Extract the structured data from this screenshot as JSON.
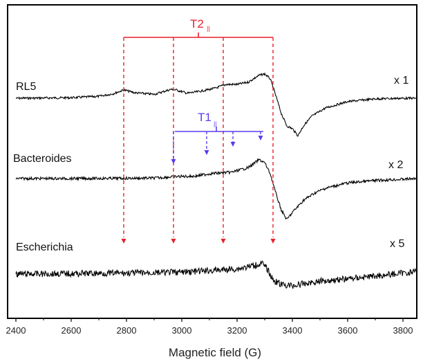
{
  "chart_data": {
    "type": "line",
    "xlabel": "Magnetic field (G)",
    "xlim": [
      2370,
      3850
    ],
    "xticks": [
      2400,
      2600,
      2800,
      3000,
      3200,
      3400,
      3600,
      3800
    ],
    "grid": false,
    "series": [
      {
        "name": "RL5",
        "scale": "x 1",
        "color": "#000000",
        "x": [
          2400,
          2500,
          2600,
          2700,
          2750,
          2790,
          2830,
          2900,
          2960,
          2980,
          3020,
          3060,
          3120,
          3160,
          3200,
          3240,
          3280,
          3300,
          3320,
          3340,
          3360,
          3380,
          3400,
          3420,
          3440,
          3470,
          3520,
          3600,
          3700,
          3800,
          3850
        ],
        "y_offset": [
          0.0,
          0.1,
          0.2,
          0.7,
          1.6,
          3.0,
          2.0,
          1.4,
          3.2,
          3.0,
          1.8,
          2.4,
          3.6,
          5.0,
          5.0,
          5.8,
          8.3,
          8.8,
          7.0,
          1.0,
          -5.5,
          -10.0,
          -11.0,
          -13.5,
          -10.0,
          -6.5,
          -3.5,
          -1.2,
          -0.2,
          0.0,
          0.0
        ]
      },
      {
        "name": "Bacteroides",
        "scale": "x 2",
        "color": "#000000",
        "x": [
          2400,
          2600,
          2800,
          2900,
          2980,
          3050,
          3100,
          3180,
          3240,
          3280,
          3300,
          3320,
          3340,
          3360,
          3380,
          3400,
          3440,
          3480,
          3520,
          3600,
          3700,
          3800,
          3850
        ],
        "y_offset": [
          0.0,
          0.0,
          0.1,
          0.2,
          0.8,
          1.0,
          2.0,
          2.6,
          4.5,
          7.8,
          6.5,
          2.0,
          -6.0,
          -13.0,
          -17.0,
          -14.0,
          -9.0,
          -6.0,
          -4.0,
          -1.8,
          -0.8,
          -0.3,
          0.0
        ]
      },
      {
        "name": "Escherichia",
        "scale": "x 5",
        "color": "#000000",
        "x": [
          2400,
          2600,
          2800,
          3000,
          3100,
          3200,
          3260,
          3290,
          3310,
          3330,
          3360,
          3400,
          3440,
          3500,
          3600,
          3700,
          3800,
          3850
        ],
        "y_offset": [
          0.0,
          0.2,
          0.4,
          0.8,
          1.4,
          2.2,
          3.6,
          4.5,
          2.0,
          -2.5,
          -4.5,
          -5.0,
          -4.2,
          -3.0,
          -2.0,
          -0.8,
          0.4,
          1.2
        ]
      }
    ],
    "annotations": {
      "T2": {
        "label": "T2",
        "subscript": "||",
        "color": "#e8202a",
        "positions": [
          2790,
          2970,
          3150,
          3330
        ]
      },
      "T1": {
        "label": "T1",
        "subscript": "||",
        "color": "#5a3cf0",
        "positions": [
          2970,
          3090,
          3185,
          3285
        ]
      }
    }
  }
}
